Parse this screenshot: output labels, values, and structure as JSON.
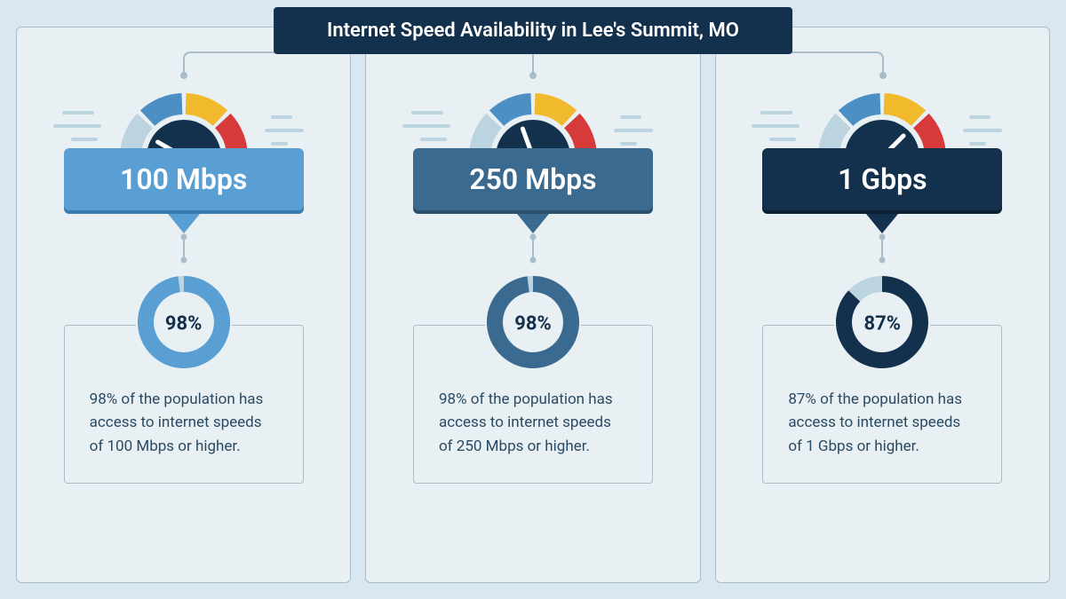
{
  "title": "Internet Speed Availability in Lee's Summit, MO",
  "background_color": "#d9e8f0",
  "card_background": "#e9f0f4",
  "card_border": "#a8bdc9",
  "title_bar_bg": "#13314d",
  "title_bar_fg": "#ffffff",
  "gauge": {
    "segment_colors": [
      "#bcd3e0",
      "#4b8fc4",
      "#f1b92c",
      "#d73a3a"
    ],
    "hub_color": "#13314d",
    "needle_color": "#ffffff",
    "wind_color": "#bcd3e0"
  },
  "desc_text_color": "#2a4a63",
  "tiers": [
    {
      "speed_label": "100 Mbps",
      "label_bg": "#5a9fd4",
      "label_fg": "#ffffff",
      "label_shadow": "#3a7cb0",
      "needle_angle_deg": -60,
      "donut_pct": 98,
      "donut_fg": "#5a9fd4",
      "donut_bg": "#bcd3e0",
      "pct_text": "98%",
      "description": "98% of the population has access to internet speeds of 100 Mbps or higher."
    },
    {
      "speed_label": "250 Mbps",
      "label_bg": "#3a6a8f",
      "label_fg": "#ffffff",
      "label_shadow": "#2a4f6d",
      "needle_angle_deg": -20,
      "donut_pct": 98,
      "donut_fg": "#3a6a8f",
      "donut_bg": "#bcd3e0",
      "pct_text": "98%",
      "description": "98% of the population has access to internet speeds of 250 Mbps or higher."
    },
    {
      "speed_label": "1 Gbps",
      "label_bg": "#13314d",
      "label_fg": "#ffffff",
      "label_shadow": "#0b2033",
      "needle_angle_deg": 45,
      "donut_pct": 87,
      "donut_fg": "#13314d",
      "donut_bg": "#bcd3e0",
      "pct_text": "87%",
      "description": "87% of the population has access to internet speeds of 1 Gbps or higher."
    }
  ]
}
